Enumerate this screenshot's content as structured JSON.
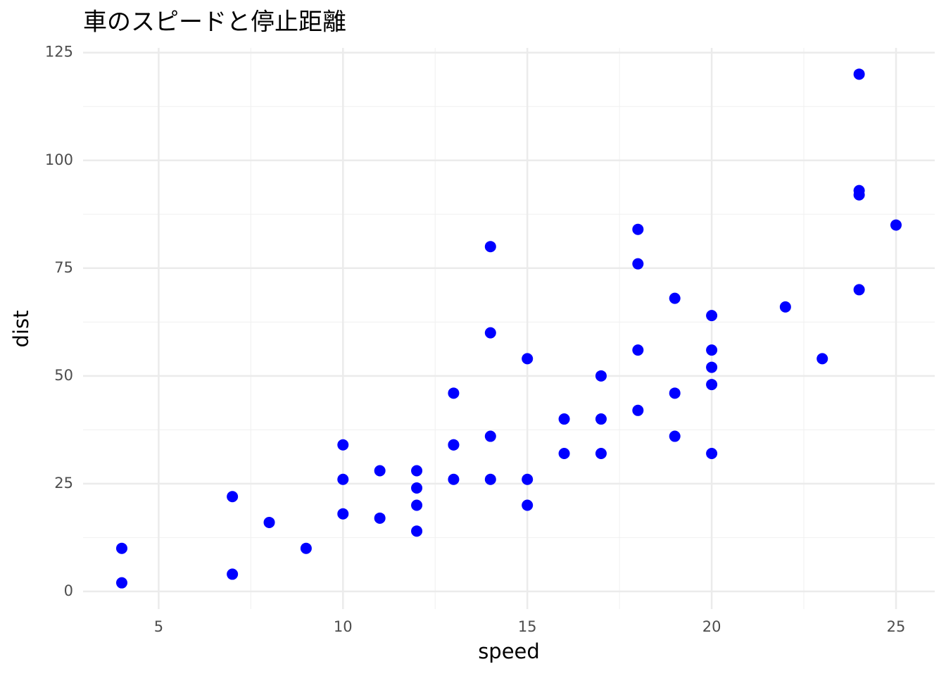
{
  "chart_data": {
    "type": "scatter",
    "title": "車のスピードと停止距離",
    "x_label": "speed",
    "y_label": "dist",
    "series": [
      {
        "color": "#0000ff",
        "x": [
          4,
          4,
          7,
          7,
          8,
          9,
          10,
          10,
          10,
          11,
          11,
          12,
          12,
          12,
          12,
          13,
          13,
          13,
          13,
          14,
          14,
          14,
          14,
          15,
          15,
          15,
          16,
          16,
          17,
          17,
          17,
          18,
          18,
          18,
          18,
          19,
          19,
          19,
          20,
          20,
          20,
          20,
          20,
          22,
          23,
          24,
          24,
          24,
          24,
          25
        ],
        "values": [
          2,
          10,
          4,
          22,
          16,
          10,
          18,
          26,
          34,
          17,
          28,
          14,
          20,
          24,
          28,
          26,
          34,
          34,
          46,
          26,
          36,
          60,
          80,
          20,
          26,
          54,
          32,
          40,
          32,
          40,
          50,
          42,
          56,
          76,
          84,
          36,
          46,
          68,
          32,
          48,
          52,
          56,
          64,
          66,
          54,
          70,
          92,
          93,
          120,
          85
        ]
      }
    ],
    "xlim": [
      2.95,
      26.05
    ],
    "ylim": [
      -4.1,
      126.1
    ],
    "xticks": [
      5,
      10,
      15,
      20,
      25
    ],
    "yticks": [
      0,
      25,
      50,
      75,
      100,
      125
    ],
    "grid": true
  }
}
